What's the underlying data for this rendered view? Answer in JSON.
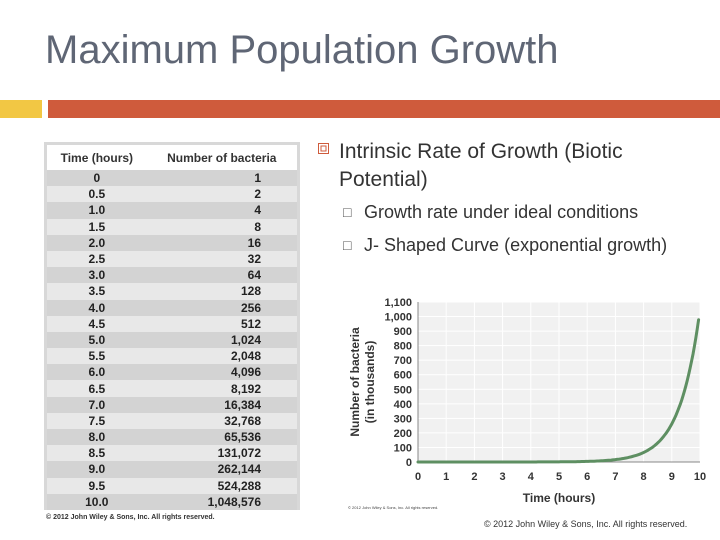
{
  "title": "Maximum Population Growth",
  "table": {
    "headers": [
      "Time (hours)",
      "Number of bacteria"
    ],
    "rows": [
      [
        "0",
        "1"
      ],
      [
        "0.5",
        "2"
      ],
      [
        "1.0",
        "4"
      ],
      [
        "1.5",
        "8"
      ],
      [
        "2.0",
        "16"
      ],
      [
        "2.5",
        "32"
      ],
      [
        "3.0",
        "64"
      ],
      [
        "3.5",
        "128"
      ],
      [
        "4.0",
        "256"
      ],
      [
        "4.5",
        "512"
      ],
      [
        "5.0",
        "1,024"
      ],
      [
        "5.5",
        "2,048"
      ],
      [
        "6.0",
        "4,096"
      ],
      [
        "6.5",
        "8,192"
      ],
      [
        "7.0",
        "16,384"
      ],
      [
        "7.5",
        "32,768"
      ],
      [
        "8.0",
        "65,536"
      ],
      [
        "8.5",
        "131,072"
      ],
      [
        "9.0",
        "262,144"
      ],
      [
        "9.5",
        "524,288"
      ],
      [
        "10.0",
        "1,048,576"
      ]
    ],
    "copyright": "© 2012 John Wiley & Sons, Inc. All rights reserved."
  },
  "bullets": {
    "main": "Intrinsic Rate of Growth (Biotic Potential)",
    "sub": [
      "Growth rate under ideal conditions",
      "J- Shaped Curve (exponential growth)"
    ]
  },
  "chart_data": {
    "type": "line",
    "xlabel": "Time (hours)",
    "ylabel": "Number of bacteria",
    "ylabel_sub": "(in thousands)",
    "xlim": [
      0,
      10
    ],
    "ylim": [
      0,
      1100
    ],
    "x_ticks": [
      "0",
      "1",
      "2",
      "3",
      "4",
      "5",
      "6",
      "7",
      "8",
      "9",
      "10"
    ],
    "y_ticks": [
      "0",
      "100",
      "200",
      "300",
      "400",
      "500",
      "600",
      "700",
      "800",
      "900",
      "1,000",
      "1,100"
    ],
    "series": [
      {
        "x": [
          0,
          0.5,
          1,
          1.5,
          2,
          2.5,
          3,
          3.5,
          4,
          4.5,
          5,
          5.5,
          6,
          6.5,
          7,
          7.5,
          8,
          8.5,
          9,
          9.5,
          10
        ],
        "values": [
          0.001,
          0.002,
          0.004,
          0.008,
          0.016,
          0.032,
          0.064,
          0.128,
          0.256,
          0.512,
          1.024,
          2.048,
          4.096,
          8.192,
          16.384,
          32.768,
          65.536,
          131.072,
          262.144,
          524.288,
          1048.576
        ]
      }
    ],
    "line_color": "#5e8f62",
    "grid": true,
    "copyright": "© 2012 John Wiley & Sons, Inc. All rights reserved."
  },
  "footer": "© 2012 John Wiley & Sons, Inc. All rights reserved."
}
